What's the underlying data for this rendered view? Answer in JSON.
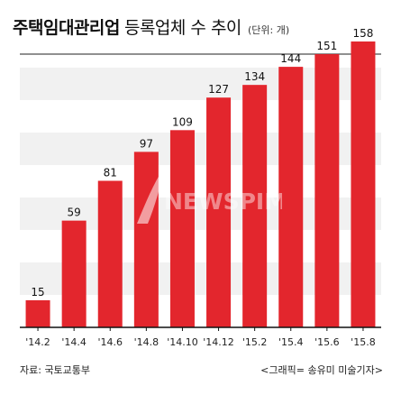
{
  "header": {
    "title_main": "주택임대관리업",
    "title_sub": "등록업체 수 추이",
    "unit": "(단위: 개)"
  },
  "footer": {
    "source": "자료: 국토교통부",
    "credit": "<그래픽= 송유미 미술기자>"
  },
  "watermark": {
    "text": "NEWSPIM"
  },
  "colors": {
    "bar": "#e3262d",
    "band": "#f1f1f1",
    "axis": "#111111"
  },
  "chart_data": {
    "type": "bar",
    "title": "주택임대관리업 등록업체 수 추이",
    "unit": "(단위: 개)",
    "categories": [
      "'14.2",
      "'14.4",
      "'14.6",
      "'14.8",
      "'14.10",
      "'14.12",
      "'15.2",
      "'15.4",
      "'15.6",
      "'15.8"
    ],
    "values": [
      15,
      59,
      81,
      97,
      109,
      127,
      134,
      144,
      151,
      158
    ],
    "ylim": [
      0,
      160
    ],
    "grid": "horizontal bands",
    "data_labels": true
  }
}
